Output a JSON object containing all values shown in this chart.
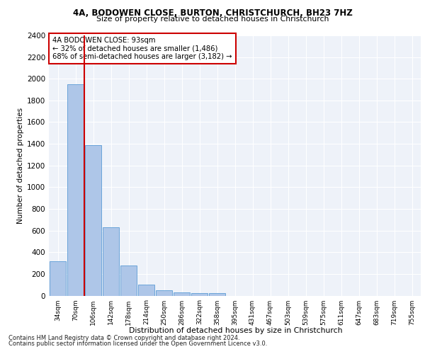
{
  "title1": "4A, BODOWEN CLOSE, BURTON, CHRISTCHURCH, BH23 7HZ",
  "title2": "Size of property relative to detached houses in Christchurch",
  "xlabel": "Distribution of detached houses by size in Christchurch",
  "ylabel": "Number of detached properties",
  "categories": [
    "34sqm",
    "70sqm",
    "106sqm",
    "142sqm",
    "178sqm",
    "214sqm",
    "250sqm",
    "286sqm",
    "322sqm",
    "358sqm",
    "395sqm",
    "431sqm",
    "467sqm",
    "503sqm",
    "539sqm",
    "575sqm",
    "611sqm",
    "647sqm",
    "683sqm",
    "719sqm",
    "755sqm"
  ],
  "values": [
    315,
    1950,
    1385,
    630,
    275,
    100,
    48,
    32,
    25,
    20,
    0,
    0,
    0,
    0,
    0,
    0,
    0,
    0,
    0,
    0,
    0
  ],
  "bar_color": "#aec6e8",
  "bar_edge_color": "#5b9bd5",
  "vline_color": "#cc0000",
  "vline_x": 1.5,
  "annotation_text": "4A BODOWEN CLOSE: 93sqm\n← 32% of detached houses are smaller (1,486)\n68% of semi-detached houses are larger (3,182) →",
  "annotation_box_color": "#cc0000",
  "ylim": [
    0,
    2400
  ],
  "yticks": [
    0,
    200,
    400,
    600,
    800,
    1000,
    1200,
    1400,
    1600,
    1800,
    2000,
    2200,
    2400
  ],
  "footnote1": "Contains HM Land Registry data © Crown copyright and database right 2024.",
  "footnote2": "Contains public sector information licensed under the Open Government Licence v3.0.",
  "plot_bg_color": "#eef2f9"
}
